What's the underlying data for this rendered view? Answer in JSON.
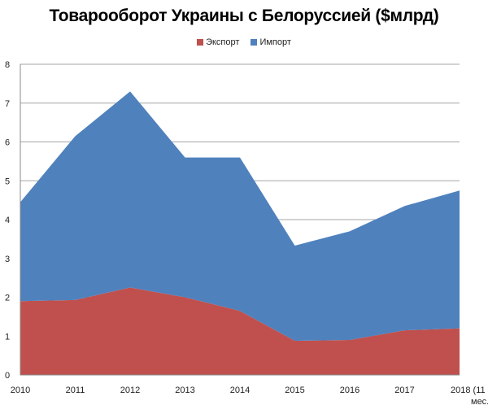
{
  "chart_data": {
    "type": "area",
    "stacked": true,
    "title": "Товарооборот Украины с Белоруссией ($млрд)",
    "categories": [
      "2010",
      "2011",
      "2012",
      "2013",
      "2014",
      "2015",
      "2016",
      "2017",
      "2018 (11 мес.)"
    ],
    "series": [
      {
        "name": "Экспорт",
        "color": "#c0504d",
        "values": [
          1.9,
          1.93,
          2.25,
          2.0,
          1.65,
          0.88,
          0.9,
          1.15,
          1.2
        ]
      },
      {
        "name": "Импорт",
        "color": "#4f81bd",
        "values": [
          2.55,
          4.22,
          5.05,
          3.6,
          3.95,
          2.45,
          2.8,
          3.2,
          3.55
        ]
      }
    ],
    "yticks": [
      "0",
      "1",
      "2",
      "3",
      "4",
      "5",
      "6",
      "7",
      "8"
    ],
    "ylim": [
      0,
      8
    ],
    "grid": true,
    "legend": "top"
  }
}
